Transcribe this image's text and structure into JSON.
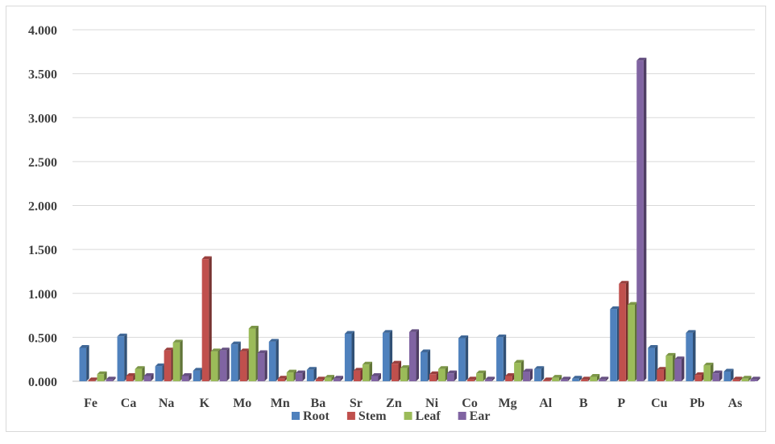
{
  "chart_data": {
    "type": "bar",
    "categories": [
      "Fe",
      "Ca",
      "Na",
      "K",
      "Mo",
      "Mn",
      "Ba",
      "Sr",
      "Zn",
      "Ni",
      "Co",
      "Mg",
      "Al",
      "B",
      "P",
      "Cu",
      "Pb",
      "As"
    ],
    "series": [
      {
        "name": "Root",
        "color": "#4f81bd",
        "values": [
          0.38,
          0.51,
          0.17,
          0.12,
          0.42,
          0.45,
          0.13,
          0.54,
          0.55,
          0.33,
          0.49,
          0.5,
          0.14,
          0.03,
          0.82,
          0.38,
          0.55,
          0.11
        ]
      },
      {
        "name": "Stem",
        "color": "#c0504d",
        "values": [
          0.01,
          0.06,
          0.35,
          1.39,
          0.34,
          0.03,
          0.02,
          0.12,
          0.2,
          0.08,
          0.02,
          0.06,
          0.01,
          0.02,
          1.11,
          0.13,
          0.07,
          0.02
        ]
      },
      {
        "name": "Leaf",
        "color": "#9bbb59",
        "values": [
          0.08,
          0.14,
          0.44,
          0.34,
          0.6,
          0.1,
          0.04,
          0.19,
          0.15,
          0.14,
          0.09,
          0.21,
          0.04,
          0.05,
          0.87,
          0.29,
          0.18,
          0.03
        ]
      },
      {
        "name": "Ear",
        "color": "#8064a2",
        "values": [
          0.02,
          0.06,
          0.06,
          0.35,
          0.32,
          0.09,
          0.03,
          0.06,
          0.56,
          0.09,
          0.02,
          0.11,
          0.02,
          0.02,
          3.65,
          0.25,
          0.09,
          0.02
        ]
      }
    ],
    "yticks": [
      "0.000",
      "0.500",
      "1.000",
      "1.500",
      "2.000",
      "2.500",
      "3.000",
      "3.500",
      "4.000"
    ],
    "ylim": [
      0,
      4
    ],
    "title": "",
    "xlabel": "",
    "ylabel": "",
    "grid": true,
    "legend_position": "bottom",
    "style": "3d-column"
  }
}
